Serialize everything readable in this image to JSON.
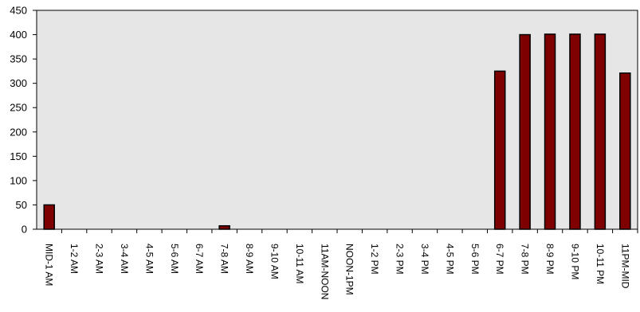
{
  "chart_data": {
    "type": "bar",
    "title": "",
    "xlabel": "",
    "ylabel": "",
    "ylim": [
      0,
      450
    ],
    "yticks": [
      0,
      50,
      100,
      150,
      200,
      250,
      300,
      350,
      400,
      450
    ],
    "grid": false,
    "categories": [
      "MID-1 AM",
      "1-2 AM",
      "2-3 AM",
      "3-4 AM",
      "4-5 AM",
      "5-6 AM",
      "6-7 AM",
      "7-8 AM",
      "8-9 AM",
      "9-10 AM",
      "10-11 AM",
      "11AM-NOON",
      "NOON-1PM",
      "1-2 PM",
      "2-3 PM",
      "3-4 PM",
      "4-5 PM",
      "5-6 PM",
      "6-7 PM",
      "7-8 PM",
      "8-9 PM",
      "9-10 PM",
      "10-11 PM",
      "11PM-MID"
    ],
    "values": [
      50,
      0,
      0,
      0,
      0,
      0,
      0,
      7,
      0,
      0,
      0,
      0,
      0,
      0,
      0,
      0,
      0,
      0,
      325,
      400,
      401,
      401,
      401,
      321
    ],
    "colors": {
      "bar": "#7f0000",
      "bar_stroke": "#000000",
      "plot_bg": "#e6e6e6"
    }
  }
}
